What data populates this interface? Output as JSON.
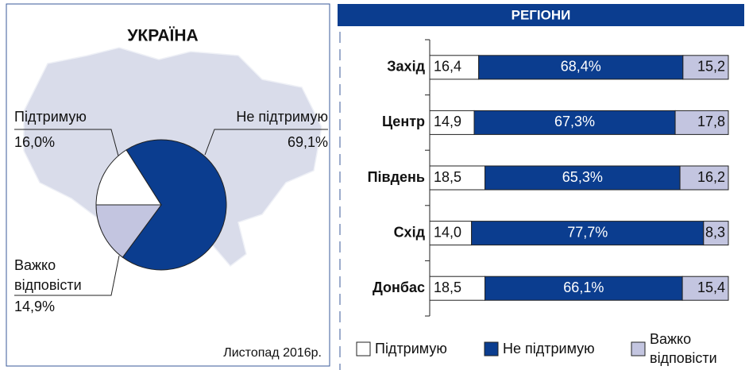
{
  "chart_data": [
    {
      "type": "pie",
      "title": "УКРАЇНА",
      "categories": [
        "Підтримую",
        "Не підтримую",
        "Важко відповісти"
      ],
      "values": [
        16.0,
        69.1,
        14.9
      ],
      "value_labels": [
        "16,0%",
        "69,1%",
        "14,9%"
      ],
      "colors": [
        "#ffffff",
        "#0b3d8f",
        "#c3c5e0"
      ],
      "annotation": "Листопад 2016р."
    },
    {
      "type": "bar",
      "orientation": "horizontal",
      "stacked": true,
      "title": "РЕГІОНИ",
      "categories": [
        "Захід",
        "Центр",
        "Південь",
        "Схід",
        "Донбас"
      ],
      "xlim": [
        0,
        100
      ],
      "legend": "bottom",
      "series": [
        {
          "name": "Підтримую",
          "color": "#ffffff",
          "values": [
            16.4,
            14.9,
            18.5,
            14.0,
            18.5
          ],
          "value_labels": [
            "16,4",
            "14,9",
            "18,5",
            "14,0",
            "18,5"
          ]
        },
        {
          "name": "Не підтримую",
          "color": "#0b3d8f",
          "values": [
            68.4,
            67.3,
            65.3,
            77.7,
            66.1
          ],
          "value_labels": [
            "68,4%",
            "67,3%",
            "65,3%",
            "77,7%",
            "66,1%"
          ]
        },
        {
          "name": "Важко відповісти",
          "color": "#c3c5e0",
          "values": [
            15.2,
            17.8,
            16.2,
            8.3,
            15.4
          ],
          "value_labels": [
            "15,2",
            "17,8",
            "16,2",
            "8,3",
            "15,4"
          ]
        }
      ]
    }
  ]
}
